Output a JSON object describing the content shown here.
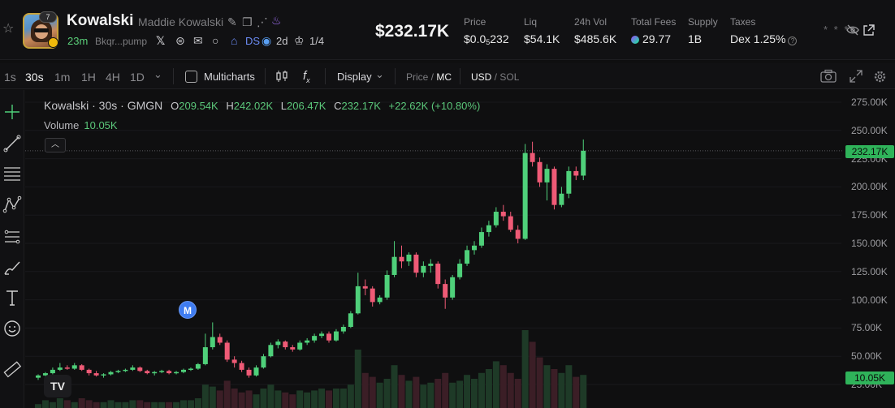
{
  "header": {
    "avatar_badge": "7",
    "token_name": "Kowalski",
    "token_fullname": "Maddie Kowalski",
    "age": "23m",
    "address": "Bkqr...pump",
    "dex_label": "DS",
    "pair_age": "2d",
    "holders": "1/4",
    "market_cap": "$232.17K",
    "stats": {
      "price_label": "Price",
      "price_main": "$0.0",
      "price_sub": "5",
      "price_tail": "232",
      "liq_label": "Liq",
      "liq_value": "$54.1K",
      "vol_label": "24h Vol",
      "vol_value": "$485.6K",
      "fees_label": "Total Fees",
      "fees_value": "29.77",
      "supply_label": "Supply",
      "supply_value": "1B",
      "taxes_label": "Taxes",
      "taxes_value": "Dex 1.25%"
    },
    "hidden_marks": "* * *"
  },
  "toolbar": {
    "timeframes": [
      "1s",
      "30s",
      "1m",
      "1H",
      "4H",
      "1D"
    ],
    "active_timeframe": "30s",
    "multicharts": "Multicharts",
    "display": "Display",
    "price_mc_a": "Price",
    "price_mc_b": "MC",
    "usd_sol_a": "USD",
    "usd_sol_b": "SOL",
    "fx": "f",
    "fx_sub": "x"
  },
  "legend": {
    "title": "Kowalski · 30s · GMGN",
    "o_label": "O",
    "o": "209.54K",
    "h_label": "H",
    "h": "242.02K",
    "l_label": "L",
    "l": "206.47K",
    "c_label": "C",
    "c": "232.17K",
    "change": "+22.62K (+10.80%)",
    "volume_label": "Volume",
    "volume_value": "10.05K"
  },
  "marker_m": "M",
  "tv_logo": "TV",
  "last_price_tag": "232.17K",
  "last_volume_tag": "10.05K",
  "colors": {
    "up": "#4fd07a",
    "down": "#ef5a76",
    "accent": "#3f7cf0"
  },
  "chart_data": {
    "type": "candlestick",
    "y_axis_ticks": [
      "275.00K",
      "250.00K",
      "225.00K",
      "200.00K",
      "175.00K",
      "150.00K",
      "125.00K",
      "100.00K",
      "75.00K",
      "50.00K",
      "25.00K"
    ],
    "ylim": [
      25000,
      275000
    ],
    "candles": [
      [
        31,
        34,
        29,
        33
      ],
      [
        33,
        36,
        32,
        35
      ],
      [
        35,
        40,
        34,
        38
      ],
      [
        38,
        44,
        37,
        40
      ],
      [
        40,
        42,
        38,
        39
      ],
      [
        39,
        44,
        38,
        42
      ],
      [
        42,
        43,
        37,
        38
      ],
      [
        38,
        39,
        33,
        35
      ],
      [
        35,
        37,
        32,
        33
      ],
      [
        33,
        35,
        31,
        34
      ],
      [
        34,
        37,
        33,
        36
      ],
      [
        36,
        38,
        35,
        37
      ],
      [
        37,
        39,
        36,
        38
      ],
      [
        38,
        42,
        37,
        40
      ],
      [
        40,
        41,
        36,
        37
      ],
      [
        37,
        38,
        34,
        35
      ],
      [
        35,
        37,
        33,
        36
      ],
      [
        36,
        38,
        35,
        37
      ],
      [
        37,
        38,
        34,
        35
      ],
      [
        35,
        37,
        34,
        36
      ],
      [
        36,
        39,
        35,
        38
      ],
      [
        38,
        40,
        37,
        39
      ],
      [
        39,
        44,
        38,
        43
      ],
      [
        43,
        70,
        42,
        58
      ],
      [
        58,
        80,
        56,
        67
      ],
      [
        67,
        70,
        60,
        62
      ],
      [
        62,
        64,
        45,
        47
      ],
      [
        47,
        50,
        40,
        44
      ],
      [
        44,
        46,
        36,
        38
      ],
      [
        38,
        40,
        31,
        33
      ],
      [
        33,
        42,
        32,
        40
      ],
      [
        40,
        52,
        39,
        50
      ],
      [
        50,
        62,
        49,
        60
      ],
      [
        60,
        65,
        57,
        63
      ],
      [
        63,
        64,
        56,
        58
      ],
      [
        58,
        60,
        54,
        56
      ],
      [
        56,
        64,
        55,
        62
      ],
      [
        62,
        66,
        60,
        64
      ],
      [
        64,
        70,
        62,
        68
      ],
      [
        68,
        72,
        66,
        70
      ],
      [
        70,
        72,
        62,
        64
      ],
      [
        64,
        74,
        63,
        72
      ],
      [
        72,
        78,
        70,
        76
      ],
      [
        76,
        90,
        75,
        88
      ],
      [
        88,
        124,
        87,
        112
      ],
      [
        112,
        118,
        104,
        110
      ],
      [
        110,
        112,
        94,
        98
      ],
      [
        98,
        104,
        96,
        102
      ],
      [
        102,
        126,
        100,
        122
      ],
      [
        122,
        152,
        120,
        138
      ],
      [
        138,
        148,
        128,
        134
      ],
      [
        134,
        142,
        130,
        140
      ],
      [
        140,
        142,
        120,
        124
      ],
      [
        124,
        134,
        120,
        130
      ],
      [
        130,
        136,
        124,
        132
      ],
      [
        132,
        134,
        110,
        114
      ],
      [
        114,
        118,
        92,
        102
      ],
      [
        102,
        122,
        100,
        120
      ],
      [
        120,
        136,
        118,
        132
      ],
      [
        132,
        148,
        130,
        144
      ],
      [
        144,
        152,
        140,
        148
      ],
      [
        148,
        164,
        146,
        160
      ],
      [
        160,
        170,
        156,
        166
      ],
      [
        166,
        182,
        164,
        178
      ],
      [
        178,
        184,
        170,
        174
      ],
      [
        174,
        178,
        160,
        162
      ],
      [
        162,
        166,
        150,
        154
      ],
      [
        154,
        238,
        153,
        230
      ],
      [
        230,
        240,
        218,
        222
      ],
      [
        222,
        226,
        200,
        204
      ],
      [
        204,
        220,
        188,
        216
      ],
      [
        216,
        218,
        180,
        184
      ],
      [
        184,
        200,
        182,
        194
      ],
      [
        194,
        218,
        190,
        214
      ],
      [
        214,
        218,
        206,
        210
      ],
      [
        210,
        242,
        206,
        232
      ]
    ],
    "volumes": [
      2,
      4,
      3,
      5,
      4,
      3,
      5,
      4,
      3,
      3,
      4,
      3,
      3,
      4,
      4,
      3,
      3,
      3,
      3,
      3,
      4,
      4,
      5,
      12,
      11,
      9,
      14,
      10,
      8,
      9,
      7,
      10,
      12,
      9,
      8,
      7,
      9,
      8,
      9,
      10,
      9,
      10,
      10,
      12,
      30,
      18,
      16,
      13,
      15,
      22,
      17,
      14,
      16,
      12,
      13,
      15,
      18,
      13,
      14,
      17,
      15,
      18,
      20,
      24,
      22,
      18,
      15,
      40,
      34,
      26,
      22,
      20,
      18,
      22,
      16,
      17
    ]
  }
}
